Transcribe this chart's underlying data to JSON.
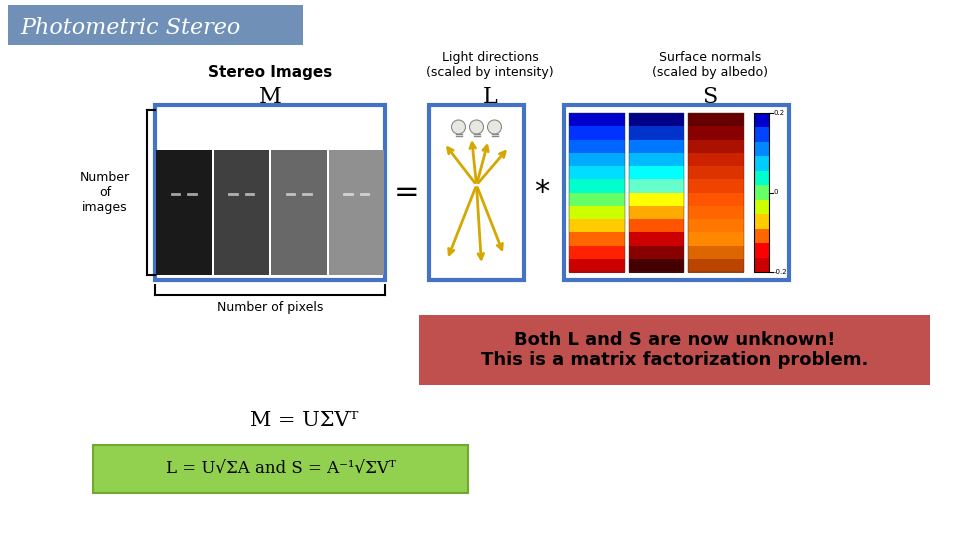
{
  "title": "Photometric Stereo",
  "title_bg": "#7090b8",
  "title_fg": "white",
  "bg_color": "white",
  "stereo_label": "Stereo Images",
  "light_label": "Light directions\n(scaled by intensity)",
  "surface_label": "Surface normals\n(scaled by albedo)",
  "M_label": "M",
  "L_label": "L",
  "S_label": "S",
  "num_images_label": "Number\nof\nimages",
  "num_pixels_label": "Number of pixels",
  "equals_sign": "=",
  "asterisk_sign": "*",
  "box_color": "#4472c4",
  "red_box_text": "Both L and S are now unknown!\nThis is a matrix factorization problem.",
  "red_box_bg": "#c0504d",
  "red_box_fg": "black",
  "eq1": "M = UΣVᵀ",
  "eq2_bg": "#92d050",
  "eq2_border": "#70a830",
  "eq2": "L = U√ΣA and S = A⁻¹√ΣVᵀ"
}
